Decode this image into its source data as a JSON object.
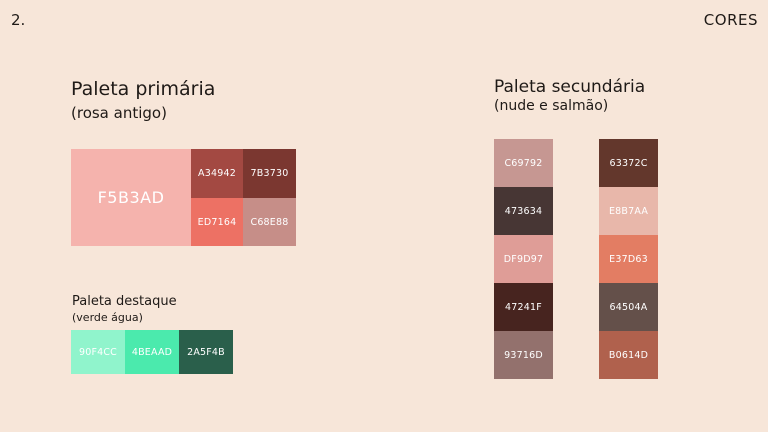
{
  "page_number": "2.",
  "section_title": "CORES",
  "primary": {
    "title": "Paleta primária",
    "subtitle": "(rosa antigo)",
    "colors": [
      {
        "code": "F5B3AD",
        "hex": "#F5B3AD"
      },
      {
        "code": "A34942",
        "hex": "#A34942"
      },
      {
        "code": "7B3730",
        "hex": "#7B3730"
      },
      {
        "code": "ED7164",
        "hex": "#ED7164"
      },
      {
        "code": "C68E88",
        "hex": "#C68E88"
      }
    ]
  },
  "highlight": {
    "title": "Paleta destaque",
    "subtitle": "(verde água)",
    "colors": [
      {
        "code": "90F4CC",
        "hex": "#90F4CC"
      },
      {
        "code": "4BEAAD",
        "hex": "#4BEAAD"
      },
      {
        "code": "2A5F4B",
        "hex": "#2A5F4B"
      }
    ]
  },
  "secondary": {
    "title": "Paleta secundária",
    "subtitle": "(nude e salmão)",
    "column_1": [
      {
        "code": "C69792",
        "hex": "#C69792"
      },
      {
        "code": "473634",
        "hex": "#473634"
      },
      {
        "code": "DF9D97",
        "hex": "#DF9D97"
      },
      {
        "code": "47241F",
        "hex": "#47241F"
      },
      {
        "code": "93716D",
        "hex": "#93716D"
      }
    ],
    "column_2": [
      {
        "code": "63372C",
        "hex": "#63372C"
      },
      {
        "code": "E8B7AA",
        "hex": "#E8B7AA"
      },
      {
        "code": "E37D63",
        "hex": "#E37D63"
      },
      {
        "code": "64504A",
        "hex": "#64504A"
      },
      {
        "code": "B0614D",
        "hex": "#B0614D"
      }
    ]
  }
}
